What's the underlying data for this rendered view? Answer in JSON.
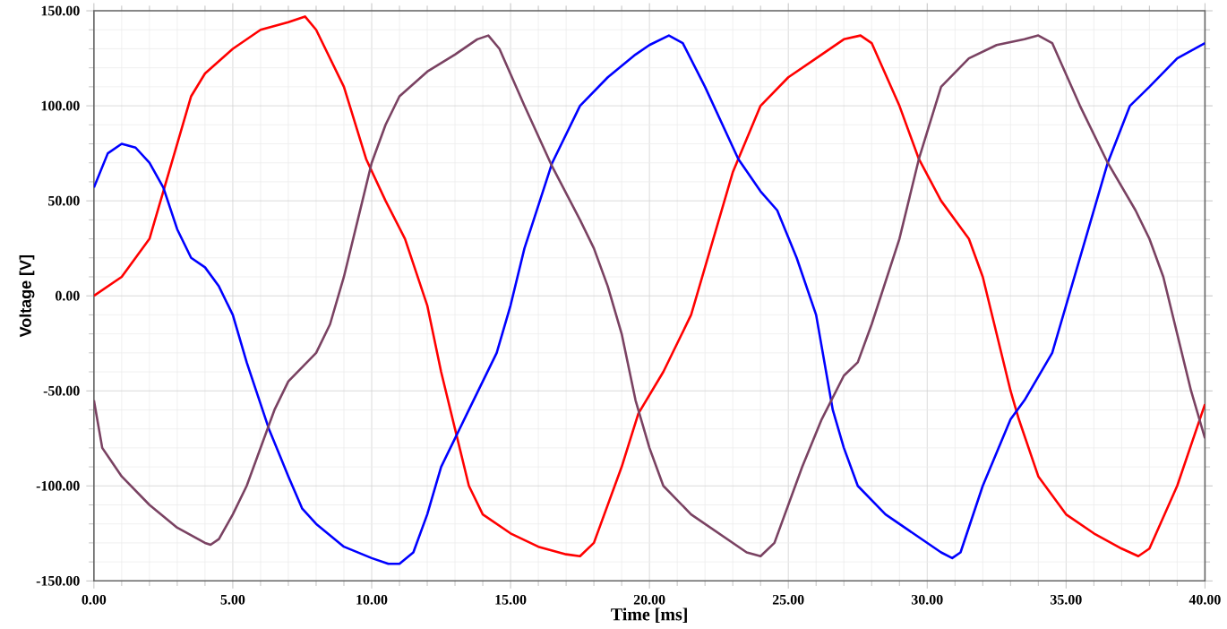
{
  "chart_data": {
    "type": "line",
    "xlabel": "Time [ms]",
    "ylabel": "Voltage [V]",
    "xlim": [
      0,
      40
    ],
    "ylim": [
      -150,
      150
    ],
    "xticks": [
      {
        "value": 0,
        "label": "0.00"
      },
      {
        "value": 5,
        "label": "5.00"
      },
      {
        "value": 10,
        "label": "10.00"
      },
      {
        "value": 15,
        "label": "15.00"
      },
      {
        "value": 20,
        "label": "20.00"
      },
      {
        "value": 25,
        "label": "25.00"
      },
      {
        "value": 30,
        "label": "30.00"
      },
      {
        "value": 35,
        "label": "35.00"
      },
      {
        "value": 40,
        "label": "40.00"
      }
    ],
    "yticks": [
      {
        "value": -150,
        "label": "-150.00"
      },
      {
        "value": -100,
        "label": "-100.00"
      },
      {
        "value": -50,
        "label": "-50.00"
      },
      {
        "value": 0,
        "label": "0.00"
      },
      {
        "value": 50,
        "label": "50.00"
      },
      {
        "value": 100,
        "label": "100.00"
      },
      {
        "value": 150,
        "label": "150.00"
      }
    ],
    "grid": true,
    "marker": "none",
    "line_style": "solid",
    "series": [
      {
        "color": "#ff0000",
        "x": [
          0,
          1,
          2,
          2.5,
          3,
          3.5,
          4,
          5,
          6,
          7,
          7.6,
          8,
          9,
          9.8,
          10.5,
          11.2,
          12,
          12.5,
          13,
          13.5,
          14,
          15,
          16,
          17,
          17.5,
          18,
          19,
          19.6,
          20.5,
          21.5,
          22.5,
          23,
          24,
          25,
          26,
          27,
          27.6,
          28,
          29,
          29.7,
          30.5,
          31.5,
          32,
          32.5,
          33,
          33.3,
          34,
          35,
          36,
          37,
          37.6,
          38,
          39,
          40
        ],
        "values": [
          0,
          10,
          30,
          55,
          80,
          105,
          117,
          130,
          140,
          144,
          147,
          140,
          110,
          72,
          50,
          30,
          -5,
          -40,
          -70,
          -100,
          -115,
          -125,
          -132,
          -136,
          -137,
          -130,
          -90,
          -62,
          -40,
          -10,
          40,
          65,
          100,
          115,
          125,
          135,
          137,
          133,
          100,
          72,
          50,
          30,
          10,
          -20,
          -50,
          -65,
          -95,
          -115,
          -125,
          -133,
          -137,
          -133,
          -100,
          -57
        ]
      },
      {
        "color": "#0000ff",
        "x": [
          0,
          0.5,
          1,
          1.5,
          2,
          2.5,
          3,
          3.5,
          4,
          4.5,
          5,
          5.5,
          6.3,
          7,
          7.5,
          8,
          9,
          10,
          10.6,
          11,
          11.5,
          12,
          12.5,
          13,
          13.5,
          14,
          14.5,
          15,
          15.5,
          16.5,
          17.5,
          18.5,
          19.5,
          20,
          20.7,
          21.2,
          22,
          23.2,
          24,
          24.6,
          25.3,
          26,
          26.6,
          27,
          27.5,
          28.5,
          29.5,
          30.5,
          30.9,
          31.2,
          32,
          33,
          33.5,
          34.5,
          35,
          35.5,
          36.5,
          37.3,
          38,
          39,
          40
        ],
        "values": [
          57,
          75,
          80,
          78,
          70,
          57,
          35,
          20,
          15,
          5,
          -10,
          -35,
          -70,
          -95,
          -112,
          -120,
          -132,
          -138,
          -141,
          -141,
          -135,
          -115,
          -90,
          -75,
          -60,
          -45,
          -30,
          -5,
          25,
          70,
          100,
          115,
          127,
          132,
          137,
          133,
          110,
          72,
          55,
          45,
          20,
          -10,
          -60,
          -80,
          -100,
          -115,
          -125,
          -135,
          -138,
          -135,
          -100,
          -65,
          -55,
          -30,
          -5,
          20,
          70,
          100,
          110,
          125,
          133
        ]
      },
      {
        "color": "#7a4262",
        "x": [
          0,
          0.3,
          1,
          2,
          3,
          4,
          4.2,
          4.5,
          5,
          5.5,
          6,
          6.5,
          7,
          8,
          8.5,
          9,
          9.5,
          10,
          10.5,
          11,
          12,
          13,
          13.8,
          14.2,
          14.6,
          15.5,
          16.5,
          17.5,
          18,
          18.5,
          19,
          19.5,
          20,
          20.5,
          21.5,
          22.5,
          23.5,
          24,
          24.5,
          25.5,
          26.2,
          27,
          27.5,
          28,
          29,
          29.7,
          30.5,
          31.5,
          32.5,
          33.5,
          34,
          34.5,
          35.5,
          36.5,
          37.5,
          38,
          38.5,
          39,
          39.5,
          40
        ],
        "values": [
          -55,
          -80,
          -95,
          -110,
          -122,
          -130,
          -131,
          -128,
          -115,
          -100,
          -80,
          -60,
          -45,
          -30,
          -15,
          10,
          40,
          70,
          90,
          105,
          118,
          127,
          135,
          137,
          130,
          100,
          68,
          40,
          25,
          5,
          -20,
          -55,
          -80,
          -100,
          -115,
          -125,
          -135,
          -137,
          -130,
          -90,
          -65,
          -42,
          -35,
          -15,
          30,
          72,
          110,
          125,
          132,
          135,
          137,
          133,
          100,
          70,
          45,
          30,
          10,
          -20,
          -50,
          -75
        ]
      }
    ]
  }
}
